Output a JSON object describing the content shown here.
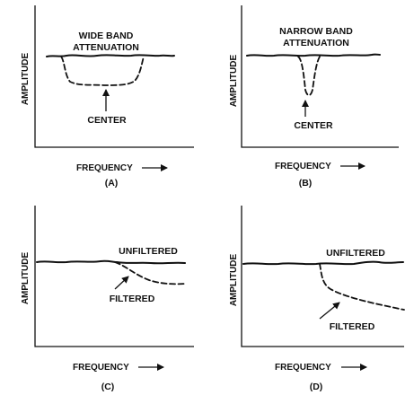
{
  "panels": [
    {
      "caption": "(A)",
      "title_lines": [
        "WIDE BAND",
        "ATTENUATION"
      ],
      "annotation": "CENTER",
      "y_axis_label": "AMPLITUDE",
      "x_axis_label": "FREQUENCY"
    },
    {
      "caption": "(B)",
      "title_lines": [
        "NARROW BAND",
        "ATTENUATION"
      ],
      "annotation": "CENTER",
      "y_axis_label": "AMPLITUDE",
      "x_axis_label": "FREQUENCY"
    },
    {
      "caption": "(C)",
      "unfiltered_label": "UNFILTERED",
      "filtered_label": "FILTERED",
      "y_axis_label": "AMPLITUDE",
      "x_axis_label": "FREQUENCY"
    },
    {
      "caption": "(D)",
      "unfiltered_label": "UNFILTERED",
      "filtered_label": "FILTERED",
      "y_axis_label": "AMPLITUDE",
      "x_axis_label": "FREQUENCY"
    }
  ]
}
